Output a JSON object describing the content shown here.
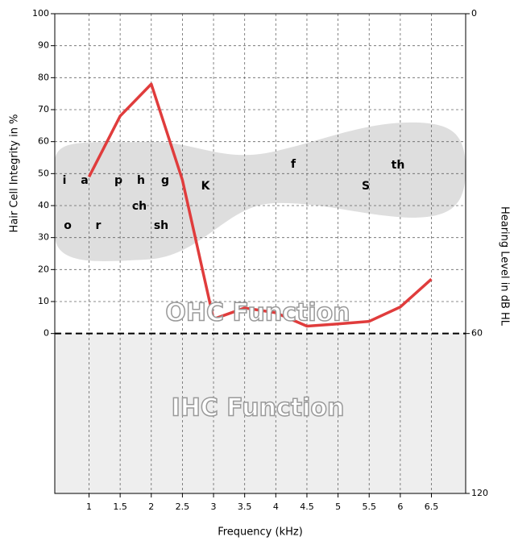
{
  "chart_data": {
    "type": "line",
    "xlabel": "Frequency (kHz)",
    "ylabel": "Hair Cell Integrity in %",
    "y2label": "Hearing Level in dB HL",
    "x": [
      1,
      1.5,
      2,
      2.5,
      3,
      3.5,
      4,
      4.5,
      5,
      5.5,
      6,
      6.5
    ],
    "series": [
      {
        "name": "Hair Cell Integrity",
        "color": "#e03c3c",
        "values": [
          49,
          68,
          78,
          48,
          4.5,
          8,
          6.5,
          2.3,
          3,
          3.8,
          8.3,
          17
        ]
      }
    ],
    "xlim": [
      0.45,
      7.05
    ],
    "xticks": [
      1,
      1.5,
      2,
      2.5,
      3,
      3.5,
      4,
      4.5,
      5,
      5.5,
      6,
      6.5
    ],
    "ylim": [
      -50,
      100
    ],
    "yticks": [
      0,
      10,
      20,
      30,
      40,
      50,
      60,
      70,
      80,
      90,
      100
    ],
    "y2lim": [
      0,
      120
    ],
    "y2ticks": [
      0,
      60,
      120
    ],
    "grid": true,
    "regions": [
      "OHC Function",
      "IHC Function"
    ],
    "phonemes": [
      "i",
      "a",
      "p",
      "h",
      "g",
      "ch",
      "sh",
      "o",
      "r",
      "K",
      "f",
      "S",
      "th"
    ]
  }
}
